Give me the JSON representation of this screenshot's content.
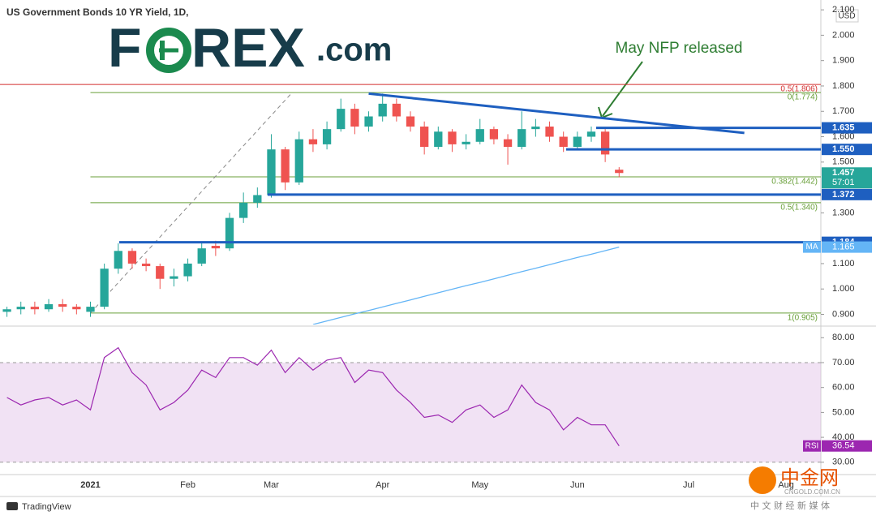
{
  "chart_data": [
    {
      "type": "candlestick",
      "title": "US Government Bonds 10 YR Yield, 1D,",
      "currency": "USD",
      "categories": [
        null,
        null,
        null,
        null,
        null,
        null,
        "2021",
        null,
        null,
        null,
        null,
        null,
        null,
        "Feb",
        null,
        null,
        null,
        null,
        null,
        "Mar",
        null,
        null,
        null,
        null,
        null,
        null,
        null,
        "Apr",
        null,
        null,
        null,
        null,
        null,
        null,
        "May",
        null,
        null,
        null,
        null,
        null,
        null,
        "Jun",
        null,
        null,
        null,
        null,
        null,
        null,
        null,
        "Jul",
        null,
        null,
        null,
        null,
        null,
        null,
        "Aug",
        null,
        null
      ],
      "open": [
        0.91,
        0.92,
        0.93,
        0.92,
        0.94,
        0.93,
        0.91,
        0.93,
        1.08,
        1.15,
        1.1,
        1.09,
        1.04,
        1.05,
        1.1,
        1.17,
        1.16,
        1.28,
        1.34,
        1.37,
        1.55,
        1.42,
        1.59,
        1.57,
        1.63,
        1.71,
        1.64,
        1.68,
        1.73,
        1.68,
        1.64,
        1.56,
        1.62,
        1.57,
        1.58,
        1.63,
        1.59,
        1.56,
        1.63,
        1.64,
        1.6,
        1.56,
        1.6,
        1.62,
        1.47,
        null,
        null,
        null,
        null,
        null,
        null,
        null,
        null,
        null,
        null,
        null,
        null,
        null,
        null
      ],
      "high": [
        0.93,
        0.95,
        0.95,
        0.96,
        0.96,
        0.94,
        0.95,
        1.1,
        1.18,
        1.16,
        1.12,
        1.1,
        1.08,
        1.12,
        1.18,
        1.19,
        1.3,
        1.38,
        1.4,
        1.61,
        1.56,
        1.62,
        1.63,
        1.66,
        1.75,
        1.73,
        1.7,
        1.77,
        1.75,
        1.7,
        1.66,
        1.64,
        1.63,
        1.61,
        1.67,
        1.64,
        1.61,
        1.7,
        1.67,
        1.66,
        1.62,
        1.62,
        1.64,
        1.63,
        1.48,
        null,
        null,
        null,
        null,
        null,
        null,
        null,
        null,
        null,
        null,
        null,
        null,
        null,
        null
      ],
      "low": [
        0.89,
        0.9,
        0.9,
        0.91,
        0.91,
        0.9,
        0.89,
        0.92,
        1.06,
        1.08,
        1.07,
        1.0,
        1.01,
        1.03,
        1.09,
        1.13,
        1.15,
        1.26,
        1.32,
        1.36,
        1.39,
        1.41,
        1.54,
        1.55,
        1.62,
        1.61,
        1.62,
        1.66,
        1.66,
        1.62,
        1.53,
        1.55,
        1.54,
        1.55,
        1.57,
        1.57,
        1.49,
        1.55,
        1.6,
        1.58,
        1.54,
        1.55,
        1.58,
        1.5,
        1.44,
        null,
        null,
        null,
        null,
        null,
        null,
        null,
        null,
        null,
        null,
        null,
        null,
        null,
        null
      ],
      "close": [
        0.92,
        0.93,
        0.92,
        0.94,
        0.93,
        0.92,
        0.93,
        1.08,
        1.15,
        1.1,
        1.09,
        1.04,
        1.05,
        1.1,
        1.16,
        1.16,
        1.28,
        1.34,
        1.37,
        1.55,
        1.42,
        1.59,
        1.57,
        1.63,
        1.71,
        1.64,
        1.68,
        1.73,
        1.68,
        1.64,
        1.56,
        1.62,
        1.57,
        1.58,
        1.63,
        1.59,
        1.56,
        1.63,
        1.64,
        1.6,
        1.56,
        1.6,
        1.62,
        1.53,
        1.457,
        null,
        null,
        null,
        null,
        null,
        null,
        null,
        null,
        null,
        null,
        null,
        null,
        null,
        null
      ],
      "up_color": "#26a69a",
      "down_color": "#ef5350",
      "ylim": [
        0.86,
        2.11
      ],
      "yticks": [
        {
          "value": 0.9,
          "label": "0.900"
        },
        {
          "value": 1.0,
          "label": "1.000"
        },
        {
          "value": 1.1,
          "label": "1.100"
        },
        {
          "value": 1.3,
          "label": "1.300"
        },
        {
          "value": 1.5,
          "label": "1.500"
        },
        {
          "value": 1.6,
          "label": "1.600"
        },
        {
          "value": 1.7,
          "label": "1.700"
        },
        {
          "value": 1.8,
          "label": "1.800"
        },
        {
          "value": 1.9,
          "label": "1.900"
        },
        {
          "value": 2.0,
          "label": "2.000"
        },
        {
          "value": 2.1,
          "label": "2.100"
        }
      ],
      "levels": [
        1.635,
        {
          "value": 1.55,
          "label": "1.550"
        },
        1.372,
        1.184
      ],
      "level_color": "#1e5fc0",
      "fibs": [
        {
          "value": 1.806,
          "label": "0.5(1.806)",
          "color": "#d32f2f"
        },
        {
          "value": 1.774,
          "label": "0(1.774)",
          "color": "#689f38"
        },
        {
          "value": 1.442,
          "label": "0.382(1.442)",
          "color": "#689f38"
        },
        {
          "value": 1.34,
          "label": "0.5(1.340)",
          "color": "#689f38"
        },
        {
          "value": 0.905,
          "label": "1(0.905)",
          "color": "#689f38"
        }
      ],
      "trendline": [
        1.77,
        1.615
      ],
      "last_price": 1.457,
      "countdown": "57:01",
      "ma": {
        "name": "MA",
        "color": "#64b5f6",
        "value_label": 1.165,
        "values": [
          null,
          null,
          null,
          null,
          null,
          null,
          null,
          null,
          null,
          null,
          null,
          null,
          null,
          null,
          null,
          null,
          null,
          null,
          null,
          null,
          null,
          null,
          0.86,
          0.874,
          0.888,
          0.902,
          0.915,
          0.929,
          0.943,
          0.957,
          0.971,
          0.985,
          0.999,
          1.013,
          1.026,
          1.04,
          1.054,
          1.068,
          1.082,
          1.096,
          1.11,
          1.124,
          1.137,
          1.151,
          1.165,
          null,
          null,
          null,
          null,
          null,
          null,
          null,
          null,
          null,
          null,
          null,
          null,
          null,
          null
        ]
      },
      "annotation": "May NFP released"
    },
    {
      "type": "line",
      "name": "RSI",
      "color": "#9c27b0",
      "values": [
        56,
        53,
        55,
        56,
        53,
        55,
        51,
        72,
        76,
        66,
        61,
        51,
        54,
        59,
        67,
        64,
        72,
        72,
        69,
        75,
        66,
        72,
        67,
        71,
        72,
        62,
        67,
        66,
        59,
        54,
        48,
        49,
        46,
        51,
        53,
        48,
        51,
        61,
        54,
        51,
        43,
        48,
        45,
        45,
        36.54,
        null,
        null,
        null,
        null,
        null,
        null,
        null,
        null,
        null,
        null,
        null,
        null,
        null,
        null
      ],
      "ylim": [
        27,
        84
      ],
      "yticks": [
        {
          "value": 30,
          "label": "30.00"
        },
        {
          "value": 40,
          "label": "40.00"
        },
        {
          "value": 50,
          "label": "50.00"
        },
        {
          "value": 60,
          "label": "60.00"
        },
        {
          "value": 70,
          "label": "70.00"
        },
        {
          "value": 80,
          "label": "80.00"
        }
      ],
      "band": [
        30,
        70
      ],
      "band_color": "#e1bee7"
    }
  ],
  "branding": {
    "logo_left": "F",
    "logo_right": "REX",
    "logo_suffix": ".com",
    "footer": "TradingView",
    "watermark": "中金网",
    "watermark_site": "CNGOLD.COM.CN",
    "watermark_tagline": "中 文 财 经 新 媒 体"
  }
}
